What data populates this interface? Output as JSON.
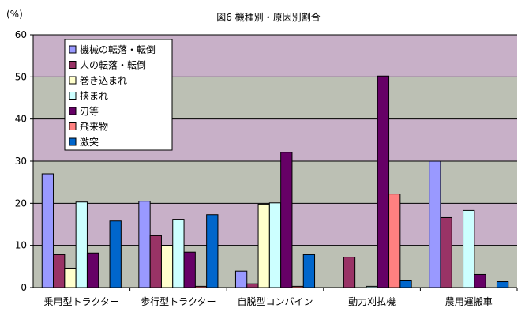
{
  "chart_data": {
    "type": "bar",
    "title": "図6 機種別・原因別割合",
    "ylabel": "(%)",
    "xlabel": "",
    "ylim": [
      0,
      60
    ],
    "yticks": [
      0,
      10,
      20,
      30,
      40,
      50,
      60
    ],
    "grid": true,
    "legend": "top-left",
    "categories": [
      "乗用型トラクター",
      "歩行型トラクター",
      "自脱型コンバイン",
      "動力刈払機",
      "農用運搬車"
    ],
    "series": [
      {
        "name": "機械の転落・転倒",
        "color": "#9999ff",
        "values": [
          27.0,
          20.5,
          3.9,
          0,
          30.0
        ]
      },
      {
        "name": "人の転落・転倒",
        "color": "#993366",
        "values": [
          7.8,
          12.3,
          0.9,
          7.2,
          16.6
        ]
      },
      {
        "name": "巻き込まれ",
        "color": "#ffffcc",
        "values": [
          4.6,
          10.0,
          19.8,
          0,
          0
        ]
      },
      {
        "name": "挟まれ",
        "color": "#ccffff",
        "values": [
          20.3,
          16.2,
          20.1,
          0.3,
          18.3
        ]
      },
      {
        "name": "刃等",
        "color": "#660066",
        "values": [
          8.2,
          8.4,
          32.1,
          50.2,
          3.1
        ]
      },
      {
        "name": "飛来物",
        "color": "#ff8080",
        "values": [
          0,
          0.3,
          0.3,
          22.2,
          0
        ]
      },
      {
        "name": "激突",
        "color": "#0066cc",
        "values": [
          15.8,
          17.3,
          7.8,
          1.6,
          1.4
        ]
      }
    ]
  }
}
